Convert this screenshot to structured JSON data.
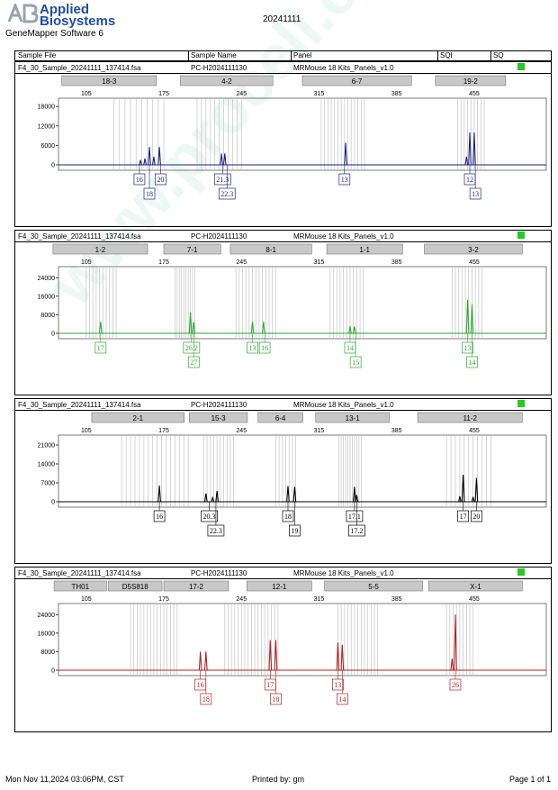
{
  "header": {
    "logo_line1": "Applied",
    "logo_line2": "Biosystems",
    "software": "GeneMapper Software 6",
    "date": "20241111"
  },
  "columns": {
    "sample_file": "Sample File",
    "sample_name": "Sample Name",
    "panel": "Panel",
    "sqi": "SQI",
    "sq": "SQ"
  },
  "footer": {
    "printed_on": "Mon Nov 11,2024 03:06PM, CST",
    "printed_by": "Printed by: gm",
    "page": "Page 1 of 1"
  },
  "watermark": "www.procell.com.cn",
  "colors": {
    "blue": "#1a237e",
    "green": "#2ea82e",
    "black": "#000000",
    "red": "#b22222",
    "sq_ok": "#22cc22"
  },
  "panels": [
    {
      "file": "F4_30_Sample_20241111_137414.fsa",
      "name": "PC-H2024111130",
      "panel": "MRMouse 18 Kits_Panels_v1.0",
      "color": "#1a237e",
      "markers": [
        {
          "label": "18-3",
          "from": 83,
          "to": 170
        },
        {
          "label": "4-2",
          "from": 190,
          "to": 275
        },
        {
          "label": "6-7",
          "from": 300,
          "to": 400
        },
        {
          "label": "19-2",
          "from": 420,
          "to": 485
        }
      ],
      "bins": [
        130,
        135,
        140,
        145,
        150,
        155,
        160,
        165,
        170,
        175,
        205,
        209,
        213,
        217,
        221,
        225,
        229,
        233,
        237,
        241,
        245,
        317,
        320,
        323,
        326,
        329,
        332,
        335,
        338,
        341,
        344,
        347,
        350,
        353,
        356,
        440,
        443,
        446,
        449,
        452,
        455,
        458,
        461,
        464
      ],
      "peaks": [
        {
          "x": 154,
          "h": 1500
        },
        {
          "x": 158,
          "h": 2000
        },
        {
          "x": 162,
          "h": 5500
        },
        {
          "x": 166,
          "h": 2500
        },
        {
          "x": 171,
          "h": 5500
        },
        {
          "x": 227,
          "h": 3500
        },
        {
          "x": 230,
          "h": 3500
        },
        {
          "x": 339,
          "h": 6800
        },
        {
          "x": 448,
          "h": 2500
        },
        {
          "x": 451,
          "h": 10000
        },
        {
          "x": 455,
          "h": 10000
        }
      ],
      "yticks": [
        0,
        6000,
        12000,
        18000
      ],
      "ymax": 20000,
      "alleles": [
        {
          "text": "16",
          "x": 153,
          "row": 0
        },
        {
          "text": "20",
          "x": 172,
          "row": 0
        },
        {
          "text": "21.3",
          "x": 228,
          "row": 0
        },
        {
          "text": "13",
          "x": 338,
          "row": 0
        },
        {
          "text": "12",
          "x": 451,
          "row": 0
        },
        {
          "text": "18",
          "x": 162,
          "row": 1
        },
        {
          "text": "22.3",
          "x": 232,
          "row": 1
        },
        {
          "text": "13",
          "x": 456,
          "row": 1
        }
      ]
    },
    {
      "file": "F4_30_Sample_20241111_137414.fsa",
      "name": "PC-H2024111130",
      "panel": "MRMouse 18 Kits_Panels_v1.0",
      "color": "#2ea82e",
      "markers": [
        {
          "label": "1-2",
          "from": 75,
          "to": 162
        },
        {
          "label": "7-1",
          "from": 175,
          "to": 228
        },
        {
          "label": "8-1",
          "from": 235,
          "to": 310
        },
        {
          "label": "1-1",
          "from": 322,
          "to": 392
        },
        {
          "label": "3-2",
          "from": 410,
          "to": 500
        }
      ],
      "bins": [
        105,
        108,
        111,
        114,
        117,
        120,
        123,
        126,
        129,
        132,
        185,
        187,
        189,
        191,
        193,
        195,
        197,
        199,
        201,
        203,
        240,
        243,
        246,
        249,
        252,
        255,
        258,
        261,
        264,
        267,
        270,
        273,
        276,
        325,
        328,
        331,
        334,
        337,
        340,
        343,
        346,
        349,
        352,
        355,
        435,
        438,
        441,
        444,
        447,
        450,
        453,
        456,
        459,
        462
      ],
      "peaks": [
        {
          "x": 118,
          "h": 5000
        },
        {
          "x": 199,
          "h": 9000
        },
        {
          "x": 202,
          "h": 4800
        },
        {
          "x": 255,
          "h": 5000
        },
        {
          "x": 265,
          "h": 5000
        },
        {
          "x": 343,
          "h": 3000
        },
        {
          "x": 347,
          "h": 3000
        },
        {
          "x": 449,
          "h": 14500
        },
        {
          "x": 453,
          "h": 12500
        }
      ],
      "yticks": [
        0,
        8000,
        16000,
        24000
      ],
      "ymax": 28000,
      "alleles": [
        {
          "text": "17",
          "x": 118,
          "row": 0
        },
        {
          "text": "26.2",
          "x": 200,
          "row": 0
        },
        {
          "text": "13",
          "x": 255,
          "row": 0
        },
        {
          "text": "16",
          "x": 266,
          "row": 0
        },
        {
          "text": "14",
          "x": 343,
          "row": 0
        },
        {
          "text": "13",
          "x": 449,
          "row": 0
        },
        {
          "text": "27",
          "x": 202,
          "row": 1
        },
        {
          "text": "15",
          "x": 348,
          "row": 1
        },
        {
          "text": "14",
          "x": 453,
          "row": 1
        }
      ]
    },
    {
      "file": "F4_30_Sample_20241111_137414.fsa",
      "name": "PC-H2024111130",
      "panel": "MRMouse 18 Kits_Panels_v1.0",
      "color": "#000000",
      "markers": [
        {
          "label": "2-1",
          "from": 110,
          "to": 195
        },
        {
          "label": "15-3",
          "from": 198,
          "to": 252
        },
        {
          "label": "6-4",
          "from": 260,
          "to": 302
        },
        {
          "label": "13-1",
          "from": 312,
          "to": 380
        },
        {
          "label": "11-2",
          "from": 404,
          "to": 500
        }
      ],
      "bins": [
        137,
        141,
        145,
        149,
        153,
        157,
        161,
        165,
        169,
        173,
        177,
        181,
        185,
        189,
        193,
        197,
        211,
        214,
        217,
        220,
        223,
        226,
        229,
        232,
        235,
        238,
        276,
        279,
        282,
        285,
        288,
        291,
        294,
        333,
        335,
        337,
        339,
        341,
        343,
        345,
        347,
        349,
        351,
        353,
        430,
        434,
        438,
        442,
        446,
        450,
        454,
        458,
        462,
        466,
        470
      ],
      "peaks": [
        {
          "x": 171,
          "h": 6000
        },
        {
          "x": 213,
          "h": 3000
        },
        {
          "x": 219,
          "h": 1500
        },
        {
          "x": 223,
          "h": 4000
        },
        {
          "x": 287,
          "h": 5800
        },
        {
          "x": 293,
          "h": 5500
        },
        {
          "x": 347,
          "h": 5500
        },
        {
          "x": 349,
          "h": 2500
        },
        {
          "x": 442,
          "h": 2000
        },
        {
          "x": 445,
          "h": 10000
        },
        {
          "x": 454,
          "h": 1800
        },
        {
          "x": 457,
          "h": 8800
        }
      ],
      "yticks": [
        0,
        7000,
        14000,
        21000
      ],
      "ymax": 24000,
      "alleles": [
        {
          "text": "16",
          "x": 171,
          "row": 0
        },
        {
          "text": "20.3",
          "x": 216,
          "row": 0
        },
        {
          "text": "18",
          "x": 287,
          "row": 0
        },
        {
          "text": "17.1",
          "x": 347,
          "row": 0
        },
        {
          "text": "17",
          "x": 445,
          "row": 0
        },
        {
          "text": "20",
          "x": 457,
          "row": 0
        },
        {
          "text": "22.3",
          "x": 222,
          "row": 1
        },
        {
          "text": "19",
          "x": 293,
          "row": 1
        },
        {
          "text": "17.2",
          "x": 349,
          "row": 1
        }
      ]
    },
    {
      "file": "F4_30_Sample_20241111_137414.fsa",
      "name": "PC-H2024111130",
      "panel": "MRMouse 18 Kits_Panels_v1.0",
      "color": "#b22222",
      "markers": [
        {
          "label": "TH01",
          "from": 76,
          "to": 125
        },
        {
          "label": "D5S818",
          "from": 125,
          "to": 175
        },
        {
          "label": "17-2",
          "from": 175,
          "to": 235
        },
        {
          "label": "12-1",
          "from": 250,
          "to": 310
        },
        {
          "label": "5-5",
          "from": 320,
          "to": 410
        },
        {
          "label": "X-1",
          "from": 414,
          "to": 500
        }
      ],
      "bins": [
        145,
        148,
        151,
        154,
        157,
        160,
        163,
        166,
        169,
        172,
        175,
        178,
        181,
        184,
        187,
        230,
        233,
        236,
        239,
        242,
        245,
        248,
        251,
        254,
        257,
        260,
        263,
        266,
        269,
        272,
        275,
        278,
        332,
        335,
        338,
        341,
        344,
        347,
        350,
        353,
        356,
        359,
        362,
        365,
        368,
        430,
        433,
        436,
        439,
        442,
        445,
        448,
        451,
        454
      ],
      "peaks": [
        {
          "x": 208,
          "h": 8000
        },
        {
          "x": 213,
          "h": 8000
        },
        {
          "x": 271,
          "h": 13000
        },
        {
          "x": 276,
          "h": 13000
        },
        {
          "x": 332,
          "h": 12000
        },
        {
          "x": 336,
          "h": 11000
        },
        {
          "x": 435,
          "h": 5000
        },
        {
          "x": 438,
          "h": 24000
        }
      ],
      "yticks": [
        0,
        8000,
        16000,
        24000
      ],
      "ymax": 28000,
      "alleles": [
        {
          "text": "16",
          "x": 208,
          "row": 0
        },
        {
          "text": "17",
          "x": 271,
          "row": 0
        },
        {
          "text": "13",
          "x": 332,
          "row": 0
        },
        {
          "text": "26",
          "x": 438,
          "row": 0
        },
        {
          "text": "18",
          "x": 213,
          "row": 1
        },
        {
          "text": "18",
          "x": 276,
          "row": 1
        },
        {
          "text": "14",
          "x": 336,
          "row": 1
        }
      ]
    }
  ],
  "chart_data": [
    {
      "type": "line",
      "title": "",
      "xlabel": "",
      "ylabel": "",
      "xticks": [
        105,
        175,
        245,
        315,
        385,
        455
      ],
      "xlim": [
        80,
        520
      ],
      "ylim": [
        0,
        20000
      ],
      "yticks": [
        0,
        6000,
        12000,
        18000
      ],
      "series": [
        {
          "values": [
            [
              154,
              1500
            ],
            [
              158,
              2000
            ],
            [
              162,
              5500
            ],
            [
              166,
              2500
            ],
            [
              171,
              5500
            ],
            [
              227,
              3500
            ],
            [
              230,
              3500
            ],
            [
              339,
              6800
            ],
            [
              448,
              2500
            ],
            [
              451,
              10000
            ],
            [
              455,
              10000
            ]
          ]
        }
      ],
      "categories": [
        "18-3",
        "4-2",
        "6-7",
        "19-2"
      ],
      "annotations": [
        "16",
        "18",
        "20",
        "21.3",
        "22.3",
        "13",
        "12",
        "13"
      ]
    },
    {
      "type": "line",
      "title": "",
      "xlabel": "",
      "ylabel": "",
      "xticks": [
        105,
        175,
        245,
        315,
        385,
        455
      ],
      "xlim": [
        80,
        520
      ],
      "ylim": [
        0,
        28000
      ],
      "yticks": [
        0,
        8000,
        16000,
        24000
      ],
      "series": [
        {
          "values": [
            [
              118,
              5000
            ],
            [
              199,
              9000
            ],
            [
              202,
              4800
            ],
            [
              255,
              5000
            ],
            [
              265,
              5000
            ],
            [
              343,
              3000
            ],
            [
              347,
              3000
            ],
            [
              449,
              14500
            ],
            [
              453,
              12500
            ]
          ]
        }
      ],
      "categories": [
        "1-2",
        "7-1",
        "8-1",
        "1-1",
        "3-2"
      ],
      "annotations": [
        "17",
        "26.2",
        "27",
        "13",
        "16",
        "14",
        "15",
        "13",
        "14"
      ]
    },
    {
      "type": "line",
      "title": "",
      "xlabel": "",
      "ylabel": "",
      "xticks": [
        105,
        175,
        245,
        315,
        385,
        455
      ],
      "xlim": [
        80,
        520
      ],
      "ylim": [
        0,
        24000
      ],
      "yticks": [
        0,
        7000,
        14000,
        21000
      ],
      "series": [
        {
          "values": [
            [
              171,
              6000
            ],
            [
              213,
              3000
            ],
            [
              219,
              1500
            ],
            [
              223,
              4000
            ],
            [
              287,
              5800
            ],
            [
              293,
              5500
            ],
            [
              347,
              5500
            ],
            [
              349,
              2500
            ],
            [
              442,
              2000
            ],
            [
              445,
              10000
            ],
            [
              454,
              1800
            ],
            [
              457,
              8800
            ]
          ]
        }
      ],
      "categories": [
        "2-1",
        "15-3",
        "6-4",
        "13-1",
        "11-2"
      ],
      "annotations": [
        "16",
        "20.3",
        "22.3",
        "18",
        "19",
        "17.1",
        "17.2",
        "17",
        "20"
      ]
    },
    {
      "type": "line",
      "title": "",
      "xlabel": "",
      "ylabel": "",
      "xticks": [
        105,
        175,
        245,
        315,
        385,
        455
      ],
      "xlim": [
        80,
        520
      ],
      "ylim": [
        0,
        28000
      ],
      "yticks": [
        0,
        8000,
        16000,
        24000
      ],
      "series": [
        {
          "values": [
            [
              208,
              8000
            ],
            [
              213,
              8000
            ],
            [
              271,
              13000
            ],
            [
              276,
              13000
            ],
            [
              332,
              12000
            ],
            [
              336,
              11000
            ],
            [
              435,
              5000
            ],
            [
              438,
              24000
            ]
          ]
        }
      ],
      "categories": [
        "TH01",
        "D5S818",
        "17-2",
        "12-1",
        "5-5",
        "X-1"
      ],
      "annotations": [
        "16",
        "18",
        "17",
        "18",
        "13",
        "14",
        "26"
      ]
    }
  ]
}
